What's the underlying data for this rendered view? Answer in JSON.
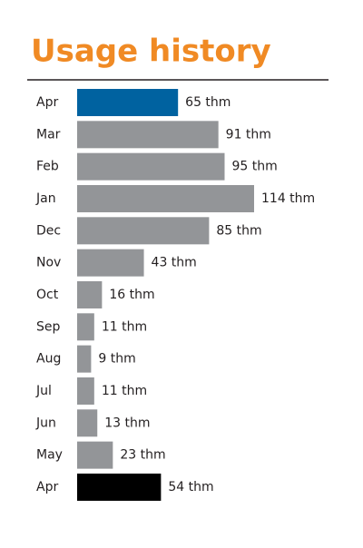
{
  "chart_data": {
    "type": "bar",
    "title": "Usage history",
    "categories": [
      "Apr",
      "Mar",
      "Feb",
      "Jan",
      "Dec",
      "Nov",
      "Oct",
      "Sep",
      "Aug",
      "Jul",
      "Jun",
      "May",
      "Apr"
    ],
    "values": [
      65,
      91,
      95,
      114,
      85,
      43,
      16,
      11,
      9,
      11,
      13,
      23,
      54
    ],
    "value_labels": [
      "65 thm",
      "91 thm",
      "95 thm",
      "114 thm",
      "85 thm",
      "43 thm",
      "16 thm",
      "11 thm",
      "9 thm",
      "11 thm",
      "13 thm",
      "23 thm",
      "54 thm"
    ],
    "colors": [
      "#0062a0",
      "#939598",
      "#939598",
      "#939598",
      "#939598",
      "#939598",
      "#939598",
      "#939598",
      "#939598",
      "#939598",
      "#939598",
      "#939598",
      "#000000"
    ],
    "title_color": "#f08a24"
  }
}
